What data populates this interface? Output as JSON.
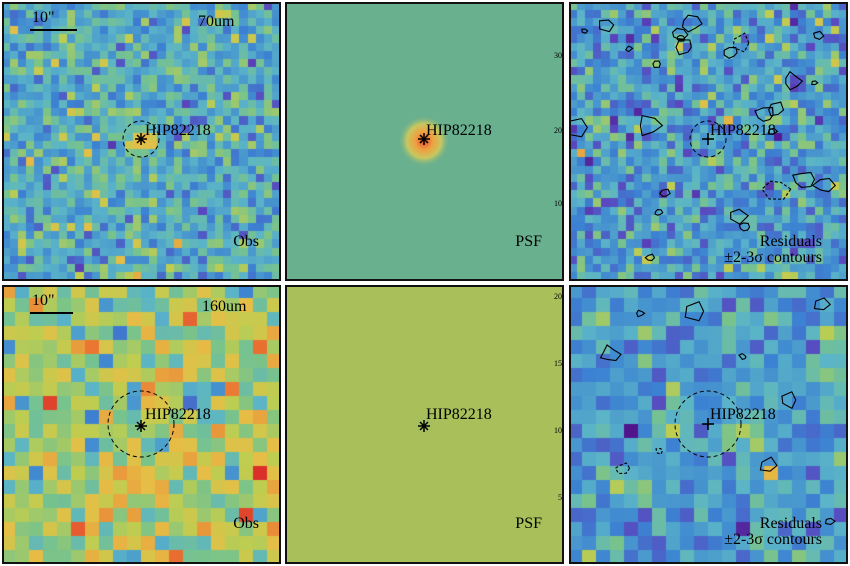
{
  "target_name": "HIP82218",
  "scale_bar_label": "10\"",
  "rows": [
    {
      "band": "70um",
      "obs_label": "Obs",
      "psf_label": "PSF",
      "resid_label": "Residuals",
      "resid_sub": "±2-3σ contours",
      "psf_ticks": [
        "30",
        "20",
        "10"
      ]
    },
    {
      "band": "160um",
      "obs_label": "Obs",
      "psf_label": "PSF",
      "resid_label": "Residuals",
      "resid_sub": "±2-3σ contours",
      "psf_ticks": [
        "20",
        "15",
        "10",
        "5"
      ]
    }
  ],
  "colors": {
    "psf_bg_70": "#69b08f",
    "psf_bg_160": "#a8bf5a",
    "frame": "#111111"
  }
}
